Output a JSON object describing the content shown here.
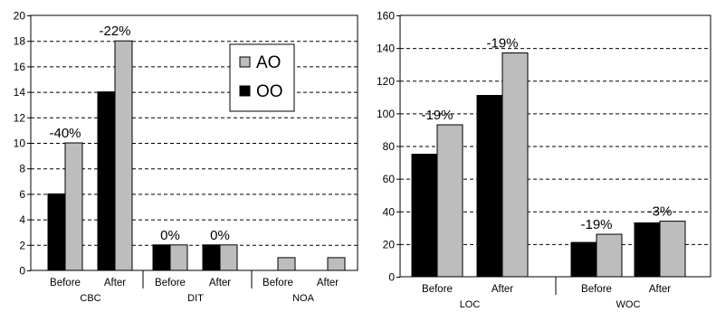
{
  "colors": {
    "AO": "#bdbdbd",
    "OO": "#000000"
  },
  "legend": {
    "items": [
      {
        "label": "AO",
        "color": "#bdbdbd"
      },
      {
        "label": "OO",
        "color": "#000000"
      }
    ]
  },
  "chart_data": [
    {
      "type": "bar",
      "title": "",
      "xlabel": "",
      "ylabel": "",
      "ylim": [
        0,
        20
      ],
      "yticks": [
        0,
        2,
        4,
        6,
        8,
        10,
        12,
        14,
        16,
        18,
        20
      ],
      "grid": true,
      "legend_position": "top-right",
      "groups": [
        "CBC",
        "DIT",
        "NOA"
      ],
      "categories": [
        "Before",
        "After",
        "Before",
        "After",
        "Before",
        "After"
      ],
      "series": [
        {
          "name": "OO",
          "values": [
            6,
            14,
            2,
            2,
            0,
            0
          ]
        },
        {
          "name": "AO",
          "values": [
            10,
            18,
            2,
            2,
            1,
            1
          ]
        }
      ],
      "annotations": [
        "-40%",
        "-22%",
        "0%",
        "0%",
        "",
        ""
      ]
    },
    {
      "type": "bar",
      "title": "",
      "xlabel": "",
      "ylabel": "",
      "ylim": [
        0,
        160
      ],
      "yticks": [
        0,
        20,
        40,
        60,
        80,
        100,
        120,
        140,
        160
      ],
      "grid": true,
      "groups": [
        "LOC",
        "WOC"
      ],
      "categories": [
        "Before",
        "After",
        "Before",
        "After"
      ],
      "series": [
        {
          "name": "OO",
          "values": [
            75,
            111,
            21,
            33
          ]
        },
        {
          "name": "AO",
          "values": [
            93,
            137,
            26,
            34
          ]
        }
      ],
      "annotations": [
        "-19%",
        "-19%",
        "-19%",
        "-3%"
      ]
    }
  ]
}
